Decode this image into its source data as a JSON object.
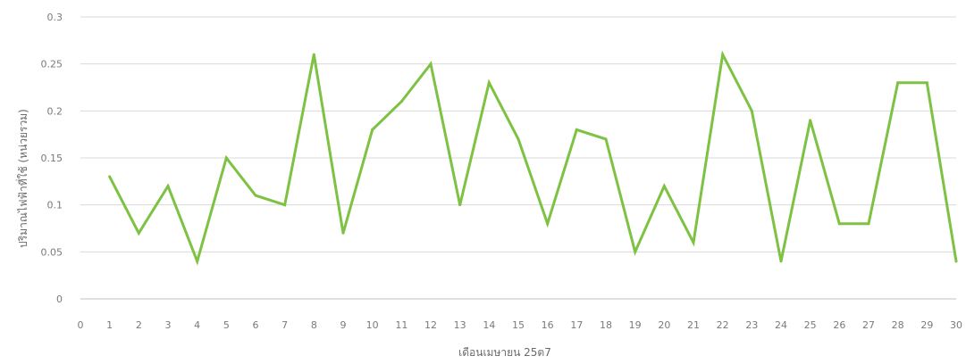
{
  "chart_data": {
    "type": "line",
    "title": "",
    "xlabel": "เดือนเมษายน 25ต7",
    "ylabel": "ปริมาณไฟฟ้าที่ใช้ (หน่วยรวม)",
    "xlim": [
      0,
      30
    ],
    "ylim": [
      0,
      0.3
    ],
    "x_ticks": [
      "0",
      "1",
      "2",
      "3",
      "4",
      "5",
      "6",
      "7",
      "8",
      "9",
      "10",
      "11",
      "12",
      "13",
      "14",
      "15",
      "16",
      "17",
      "18",
      "19",
      "20",
      "21",
      "22",
      "23",
      "24",
      "25",
      "26",
      "27",
      "28",
      "29",
      "30"
    ],
    "y_ticks": [
      "0",
      "0.05",
      "0.1",
      "0.15",
      "0.2",
      "0.25",
      "0.3"
    ],
    "grid": true,
    "legend": "none",
    "series": [
      {
        "color": "#7dc242",
        "x": [
          1,
          2,
          3,
          4,
          5,
          6,
          7,
          8,
          9,
          10,
          11,
          12,
          13,
          14,
          15,
          16,
          17,
          18,
          19,
          20,
          21,
          22,
          23,
          24,
          25,
          26,
          27,
          28,
          29,
          30
        ],
        "values": [
          0.13,
          0.07,
          0.12,
          0.04,
          0.15,
          0.11,
          0.1,
          0.26,
          0.07,
          0.18,
          0.21,
          0.25,
          0.1,
          0.23,
          0.17,
          0.08,
          0.18,
          0.17,
          0.05,
          0.12,
          0.06,
          0.26,
          0.2,
          0.04,
          0.19,
          0.08,
          0.08,
          0.23,
          0.23,
          0.04
        ]
      }
    ]
  }
}
